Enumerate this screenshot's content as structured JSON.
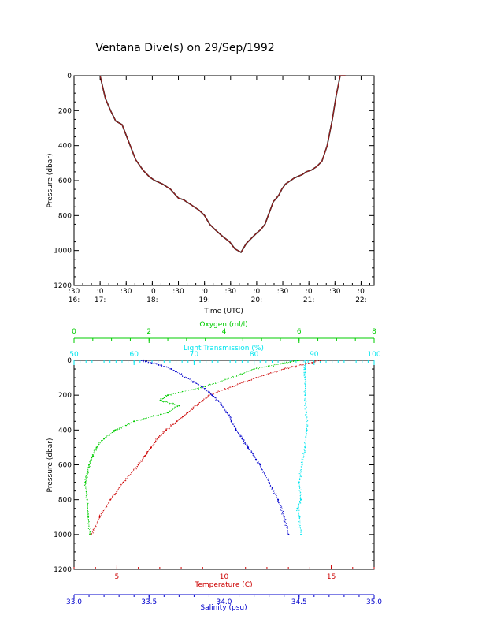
{
  "title": "Ventana Dive(s) on 29/Sep/1992",
  "colors": {
    "axis": "#000000",
    "trace": "#b22222",
    "trace_shadow": "#000000",
    "oxygen": "#00cc00",
    "light": "#00e5ee",
    "temperature": "#cc0000",
    "salinity": "#0000cc"
  },
  "chart_data": [
    {
      "type": "line",
      "title": "Ventana Dive(s) on 29/Sep/1992",
      "xlabel": "Time (UTC)",
      "ylabel": "Pressure (dbar)",
      "ylim": [
        1200,
        0
      ],
      "y_ticks": [
        "0",
        "200",
        "400",
        "600",
        "800",
        "1000",
        "1200"
      ],
      "x_ticks": [
        {
          "top": ":30",
          "bottom": "16:"
        },
        {
          "top": ":0",
          "bottom": "17:"
        },
        {
          "top": ":30",
          "bottom": ""
        },
        {
          "top": ":0",
          "bottom": "18:"
        },
        {
          "top": ":30",
          "bottom": ""
        },
        {
          "top": ":0",
          "bottom": "19:"
        },
        {
          "top": ":30",
          "bottom": ""
        },
        {
          "top": ":0",
          "bottom": "20:"
        },
        {
          "top": ":30",
          "bottom": ""
        },
        {
          "top": ":0",
          "bottom": "21:"
        },
        {
          "top": ":30",
          "bottom": ""
        },
        {
          "top": ":0",
          "bottom": "22:"
        }
      ],
      "xlim_hours": [
        16.5,
        22.25
      ],
      "series": [
        {
          "x_hours": [
            16.5,
            16.55,
            16.62,
            16.72,
            16.8,
            16.9,
            17.0,
            17.1,
            17.2,
            17.3,
            17.42,
            17.55,
            17.68,
            17.82,
            17.95,
            18.05,
            18.2,
            18.35,
            18.5,
            18.6,
            18.75,
            18.9,
            19.0,
            19.1,
            19.2,
            19.35,
            19.48,
            19.58,
            19.7,
            19.8,
            19.9,
            20.0,
            20.08,
            20.16,
            20.22,
            20.27,
            20.32,
            20.38,
            20.43,
            20.48,
            20.55,
            20.65,
            20.72,
            20.8,
            20.88,
            20.95,
            21.05,
            21.15,
            21.25,
            21.35,
            21.45,
            21.52,
            21.6,
            21.7,
            21.76,
            21.81,
            21.86
          ],
          "y": [
            0,
            0,
            0,
            0,
            0,
            0,
            0,
            130,
            200,
            260,
            280,
            380,
            480,
            540,
            580,
            600,
            620,
            650,
            700,
            710,
            740,
            770,
            800,
            850,
            880,
            920,
            950,
            990,
            1010,
            960,
            930,
            900,
            880,
            850,
            800,
            760,
            720,
            700,
            680,
            650,
            620,
            600,
            585,
            575,
            565,
            550,
            540,
            520,
            490,
            400,
            250,
            120,
            0,
            0,
            0,
            0,
            0
          ]
        }
      ]
    },
    {
      "type": "scatter",
      "ylabel": "Pressure (dbar)",
      "ylim": [
        1200,
        0
      ],
      "y_ticks": [
        "0",
        "200",
        "400",
        "600",
        "800",
        "1000",
        "1200"
      ],
      "axes": {
        "oxygen": {
          "label": "Oxygen (ml/l)",
          "range": [
            0,
            8
          ],
          "ticks": [
            "0",
            "2",
            "4",
            "6",
            "8"
          ]
        },
        "light": {
          "label": "Light Transmission (%)",
          "range": [
            50,
            100
          ],
          "ticks": [
            "50",
            "60",
            "70",
            "80",
            "90",
            "100"
          ]
        },
        "temperature": {
          "label": "Temperature (C)",
          "range": [
            3,
            17
          ],
          "ticks": [
            "5",
            "10",
            "15"
          ]
        },
        "salinity": {
          "label": "Salinity (psu)",
          "range": [
            33.0,
            35.0
          ],
          "ticks": [
            "33.0",
            "33.5",
            "34.0",
            "34.5",
            "35.0"
          ]
        }
      },
      "series": [
        {
          "variable": "oxygen",
          "pressure": [
            0,
            20,
            50,
            100,
            150,
            200,
            230,
            260,
            300,
            350,
            400,
            450,
            500,
            550,
            600,
            650,
            700,
            800,
            900,
            1000
          ],
          "value": [
            6.0,
            5.5,
            4.8,
            4.2,
            3.5,
            2.5,
            2.3,
            2.8,
            2.5,
            1.6,
            1.1,
            0.8,
            0.6,
            0.5,
            0.4,
            0.35,
            0.3,
            0.35,
            0.38,
            0.42
          ]
        },
        {
          "variable": "light",
          "pressure": [
            0,
            50,
            100,
            200,
            300,
            400,
            500,
            600,
            700,
            800,
            850,
            900,
            1000
          ],
          "value": [
            88.5,
            88.5,
            88.5,
            88.5,
            88.7,
            88.8,
            88.5,
            88.0,
            87.5,
            87.8,
            87.2,
            87.6,
            87.8
          ]
        },
        {
          "variable": "temperature",
          "pressure": [
            0,
            20,
            50,
            100,
            150,
            200,
            250,
            300,
            350,
            400,
            450,
            500,
            550,
            600,
            700,
            800,
            900,
            1000
          ],
          "value": [
            14.5,
            13.8,
            12.8,
            11.5,
            10.4,
            9.3,
            8.8,
            8.3,
            7.8,
            7.3,
            6.9,
            6.6,
            6.3,
            6.0,
            5.3,
            4.7,
            4.2,
            3.8
          ]
        },
        {
          "variable": "salinity",
          "pressure": [
            0,
            20,
            50,
            100,
            150,
            200,
            250,
            300,
            350,
            400,
            450,
            500,
            550,
            600,
            700,
            800,
            900,
            1000
          ],
          "value": [
            33.45,
            33.55,
            33.65,
            33.75,
            33.85,
            33.92,
            33.98,
            34.02,
            34.05,
            34.08,
            34.12,
            34.16,
            34.2,
            34.24,
            34.3,
            34.36,
            34.4,
            34.43
          ]
        }
      ]
    }
  ]
}
